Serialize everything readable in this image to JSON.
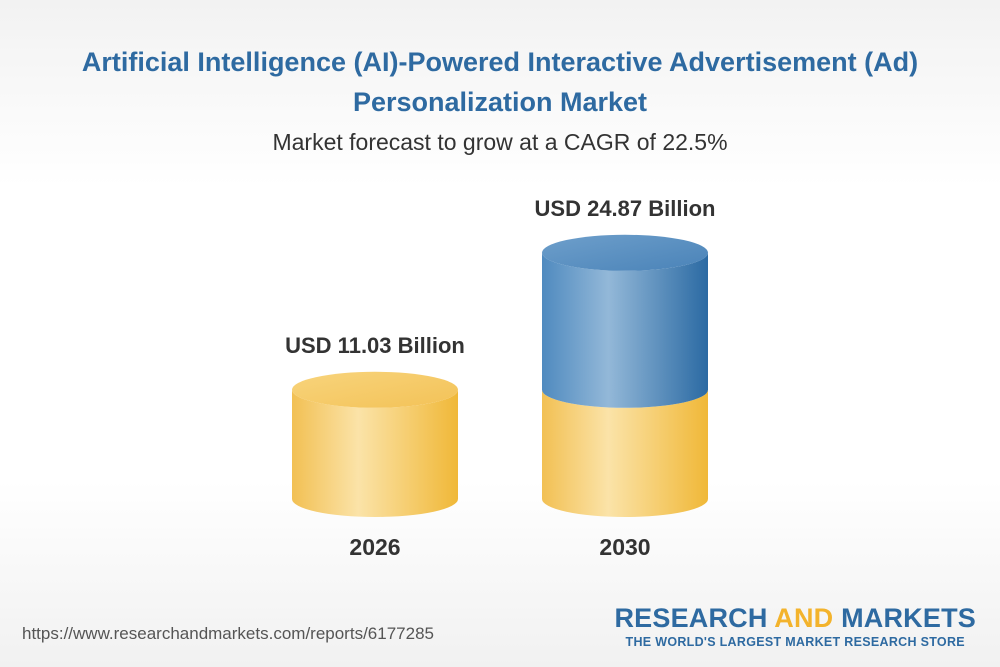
{
  "header": {
    "title": "Artificial Intelligence (AI)-Powered Interactive Advertisement (Ad) Personalization Market",
    "subtitle": "Market forecast to grow at a CAGR of 22.5%"
  },
  "chart_data": {
    "type": "bar",
    "style": "3d-cylinder",
    "title": "Artificial Intelligence (AI)-Powered Interactive Advertisement (Ad) Personalization Market",
    "subtitle": "Market forecast to grow at a CAGR of 22.5%",
    "categories": [
      "2026",
      "2030"
    ],
    "values": [
      11.03,
      24.87
    ],
    "unit": "USD Billion",
    "data_labels": [
      "USD 11.03 Billion",
      "USD 24.87 Billion"
    ],
    "xlabel": "",
    "ylabel": "",
    "grid": false
  },
  "colors": {
    "title": "#2e6aa1",
    "gold": "#f3be4e",
    "gold_light": "#fbe3a8",
    "blue": "#3a7ab5",
    "blue_light": "#8fb5d6"
  },
  "footer": {
    "url": "https://www.researchandmarkets.com/reports/6177285",
    "brand_part_a": "RESEARCH ",
    "brand_part_b": "AND",
    "brand_part_c": " MARKETS",
    "tagline": "THE WORLD'S LARGEST MARKET RESEARCH STORE"
  }
}
